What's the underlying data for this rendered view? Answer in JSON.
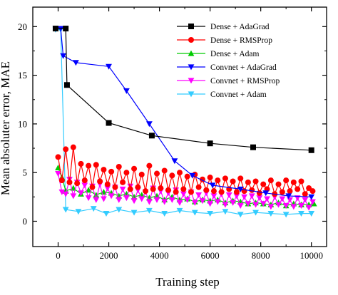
{
  "chart_data": {
    "type": "line",
    "title": "",
    "xlabel": "Training step",
    "ylabel": "Mean absoluter error, MAE",
    "xlim": [
      -1000,
      10600
    ],
    "ylim": [
      -2.6,
      22
    ],
    "xticks": [
      0,
      2000,
      4000,
      6000,
      8000,
      10000
    ],
    "yticks": [
      0,
      5,
      10,
      15,
      20
    ],
    "xtick_labels": [
      "0",
      "2000",
      "4000",
      "6000",
      "8000",
      "10000"
    ],
    "ytick_labels": [
      "0",
      "5",
      "10",
      "15",
      "20"
    ],
    "grid": false,
    "legend_position": "top-right",
    "series": [
      {
        "name": "Dense + AdaGrad",
        "color": "#000000",
        "marker": "square",
        "x": [
          -100,
          300,
          350,
          2000,
          3700,
          6000,
          7700,
          10000
        ],
        "y": [
          19.8,
          19.8,
          14.0,
          10.1,
          8.8,
          8.0,
          7.6,
          7.3
        ]
      },
      {
        "name": "Dense + RMSProp",
        "color": "#ff0000",
        "marker": "circle",
        "x": [
          0,
          150,
          300,
          450,
          600,
          750,
          900,
          1050,
          1200,
          1350,
          1500,
          1650,
          1800,
          1950,
          2100,
          2250,
          2400,
          2550,
          2700,
          2850,
          3000,
          3150,
          3300,
          3450,
          3600,
          3750,
          3900,
          4050,
          4200,
          4350,
          4500,
          4650,
          4800,
          4950,
          5100,
          5250,
          5400,
          5550,
          5700,
          5850,
          6000,
          6150,
          6300,
          6450,
          6600,
          6750,
          6900,
          7050,
          7200,
          7350,
          7500,
          7650,
          7800,
          7950,
          8100,
          8250,
          8400,
          8550,
          8700,
          8850,
          9000,
          9150,
          9300,
          9450,
          9600,
          9750,
          9900,
          10050
        ],
        "y": [
          6.6,
          4.2,
          7.4,
          4.0,
          7.6,
          3.9,
          5.9,
          4.2,
          5.7,
          3.5,
          5.8,
          4.1,
          5.3,
          3.8,
          5.1,
          3.5,
          5.6,
          4.0,
          5.0,
          3.3,
          5.4,
          3.5,
          4.8,
          3.1,
          5.7,
          3.3,
          4.9,
          3.4,
          5.2,
          3.2,
          4.7,
          3.0,
          5.0,
          3.3,
          4.6,
          3.0,
          4.8,
          3.5,
          4.3,
          3.2,
          4.5,
          3.1,
          4.2,
          3.0,
          4.4,
          3.3,
          4.1,
          3.0,
          4.4,
          3.1,
          4.0,
          3.2,
          4.1,
          2.9,
          3.8,
          3.3,
          4.2,
          2.8,
          3.8,
          3.0,
          4.2,
          3.1,
          4.0,
          3.3,
          4.1,
          2.8,
          3.4,
          3.1
        ]
      },
      {
        "name": "Dense + Adam",
        "color": "#00cc00",
        "marker": "triangle-up",
        "x": [
          0,
          150,
          300,
          600,
          900,
          1200,
          1500,
          1800,
          2100,
          2400,
          2700,
          3000,
          3300,
          3600,
          3900,
          4200,
          4500,
          4800,
          5100,
          5400,
          5700,
          6000,
          6300,
          6600,
          6900,
          7200,
          7500,
          7800,
          8100,
          8400,
          8700,
          9000,
          9300,
          9600,
          9900,
          10100
        ],
        "y": [
          5.5,
          4.5,
          3.1,
          3.4,
          2.8,
          3.2,
          2.7,
          3.0,
          2.9,
          2.6,
          2.8,
          2.5,
          2.7,
          2.4,
          2.6,
          2.2,
          2.5,
          2.2,
          2.3,
          2.0,
          2.2,
          2.1,
          2.2,
          1.9,
          2.1,
          2.0,
          1.8,
          1.9,
          1.8,
          1.7,
          1.9,
          1.6,
          1.8,
          1.7,
          1.7,
          1.8
        ]
      },
      {
        "name": "Convnet + AdaGrad",
        "color": "#0000ff",
        "marker": "triangle-down",
        "x": [
          -100,
          100,
          200,
          700,
          2000,
          2700,
          3600,
          4600,
          5300,
          6100,
          7200,
          8200,
          9100,
          10000
        ],
        "y": [
          19.8,
          19.8,
          17.0,
          16.3,
          15.9,
          13.4,
          10.0,
          6.2,
          4.7,
          3.7,
          3.3,
          2.9,
          2.6,
          2.5
        ]
      },
      {
        "name": "Convnet + RMSProp",
        "color": "#ff00ff",
        "marker": "triangle-down",
        "x": [
          0,
          150,
          300,
          450,
          600,
          750,
          900,
          1050,
          1200,
          1350,
          1500,
          1650,
          1800,
          1950,
          2100,
          2250,
          2400,
          2550,
          2700,
          2850,
          3000,
          3150,
          3300,
          3450,
          3600,
          3750,
          3900,
          4050,
          4200,
          4350,
          4500,
          4650,
          4800,
          4950,
          5100,
          5250,
          5400,
          5550,
          5700,
          5850,
          6000,
          6150,
          6300,
          6450,
          6600,
          6750,
          6900,
          7050,
          7200,
          7350,
          7500,
          7650,
          7800,
          7950,
          8100,
          8250,
          8400,
          8550,
          8700,
          8850,
          9000,
          9150,
          9300,
          9450,
          9600,
          9750,
          9900,
          10050
        ],
        "y": [
          4.9,
          3.0,
          2.8,
          4.3,
          2.6,
          4.0,
          2.9,
          3.7,
          2.4,
          3.6,
          2.2,
          3.8,
          2.3,
          3.4,
          2.6,
          3.5,
          2.2,
          3.3,
          2.4,
          3.6,
          2.1,
          3.2,
          2.3,
          3.0,
          2.0,
          3.4,
          2.2,
          3.1,
          2.0,
          2.9,
          2.2,
          3.2,
          1.9,
          2.8,
          2.2,
          3.0,
          1.9,
          2.7,
          2.1,
          2.9,
          1.8,
          2.6,
          2.0,
          2.8,
          1.7,
          2.7,
          1.9,
          2.6,
          1.6,
          2.5,
          1.8,
          2.6,
          1.7,
          2.4,
          1.8,
          2.3,
          1.5,
          2.5,
          1.7,
          2.3,
          1.6,
          2.2,
          1.5,
          2.4,
          1.6,
          2.2,
          1.4,
          2.0
        ]
      },
      {
        "name": "Convnet + Adam",
        "color": "#33ccff",
        "marker": "triangle-down",
        "x": [
          -100,
          100,
          300,
          800,
          1400,
          1900,
          2400,
          3000,
          3600,
          4200,
          4800,
          5400,
          6000,
          6600,
          7200,
          7800,
          8400,
          9000,
          9600,
          10000
        ],
        "y": [
          19.7,
          19.7,
          1.2,
          1.0,
          1.3,
          0.8,
          1.2,
          0.9,
          1.1,
          0.8,
          1.1,
          0.9,
          0.8,
          1.0,
          0.7,
          0.9,
          0.8,
          0.7,
          0.8,
          0.8
        ]
      }
    ]
  }
}
